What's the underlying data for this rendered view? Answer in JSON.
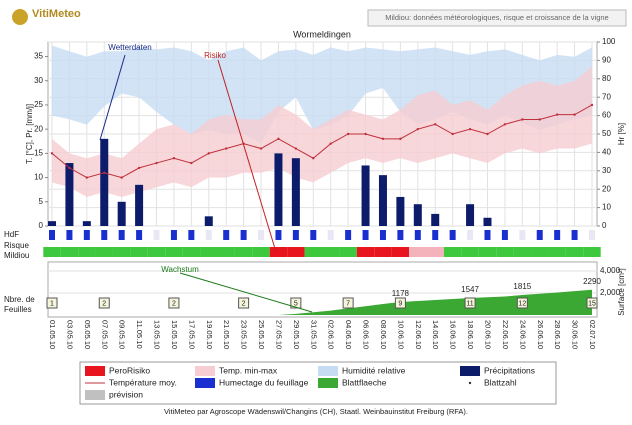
{
  "header": {
    "logo": "VitiMeteo",
    "subtitle": "Mildiou: données météorologiques, risque et croissance de la vigne"
  },
  "chart_data": {
    "type": "combo",
    "title": "Wormeldingen",
    "categories": [
      "01.05.10",
      "03.05.10",
      "05.05.10",
      "07.05.10",
      "09.05.10",
      "11.05.10",
      "13.05.10",
      "15.05.10",
      "17.05.10",
      "19.05.10",
      "21.05.10",
      "23.05.10",
      "25.05.10",
      "27.05.10",
      "29.05.10",
      "31.05.10",
      "02.06.10",
      "04.06.10",
      "06.06.10",
      "08.06.10",
      "10.06.10",
      "12.06.10",
      "14.06.10",
      "16.06.10",
      "18.06.10",
      "20.06.10",
      "22.06.10",
      "24.06.10",
      "26.06.10",
      "28.06.10",
      "30.06.10",
      "02.07.10"
    ],
    "ylabel": "T. [°C], Pr. [mm/j]",
    "ylim": [
      0,
      38
    ],
    "yticks": [
      0,
      5,
      10,
      15,
      20,
      25,
      30,
      35
    ],
    "y2label": "Hr [%]",
    "y2lim": [
      0,
      100
    ],
    "y2ticks": [
      0,
      10,
      20,
      30,
      40,
      50,
      60,
      70,
      80,
      90,
      100
    ],
    "grid": true,
    "series": [
      {
        "name": "Humidité relative",
        "kind": "band",
        "axis": "y2",
        "color": "#c5dcf3",
        "values": [
          98,
          95,
          92,
          95,
          95,
          97,
          96,
          97,
          95,
          90,
          95,
          97,
          90,
          95,
          96,
          93,
          97,
          95,
          97,
          96,
          95,
          96,
          97,
          95,
          93,
          95,
          96,
          93,
          90,
          93,
          92,
          97
        ],
        "low": [
          60,
          58,
          55,
          65,
          72,
          70,
          62,
          55,
          50,
          52,
          50,
          50,
          45,
          62,
          70,
          52,
          55,
          60,
          72,
          75,
          62,
          55,
          58,
          62,
          58,
          55,
          60,
          56,
          52,
          55,
          58,
          60
        ]
      },
      {
        "name": "Temp. min-max",
        "kind": "band",
        "color": "#f6cdd2",
        "values": [
          18,
          15,
          14,
          15,
          14,
          17,
          20,
          21,
          19,
          22,
          23,
          22,
          22,
          25,
          23,
          20,
          22,
          24,
          23,
          22,
          24,
          27,
          28,
          25,
          26,
          24,
          27,
          29,
          30,
          29,
          30,
          33
        ],
        "low": [
          9,
          8,
          6,
          7,
          6,
          7,
          8,
          9,
          8,
          10,
          10,
          11,
          11,
          12,
          10,
          9,
          11,
          13,
          14,
          13,
          14,
          13,
          14,
          15,
          14,
          13,
          15,
          16,
          15,
          16,
          16,
          17
        ]
      },
      {
        "name": "Précipitations",
        "kind": "bar",
        "color": "#0d1b6b",
        "values": [
          1,
          13,
          1,
          18,
          5,
          8.5,
          0,
          0,
          0,
          2,
          0,
          0,
          0,
          15,
          14,
          0,
          0,
          0,
          12.5,
          10.5,
          6,
          4.5,
          2.5,
          0,
          4.5,
          1.7,
          0,
          0,
          0,
          0,
          0,
          0
        ]
      },
      {
        "name": "Température moy.",
        "kind": "line",
        "color": "#c0303c",
        "values": [
          15,
          12,
          10,
          11,
          10,
          12,
          13,
          14,
          13,
          15,
          16,
          17,
          16,
          18,
          16,
          14,
          17,
          19,
          19,
          18,
          18,
          20,
          21,
          19,
          20,
          19,
          21,
          22,
          22,
          23,
          23,
          25
        ]
      }
    ],
    "wetness": {
      "name": "Humectage du feuillage",
      "label": "HdF",
      "color": "#1a2fd0",
      "values": [
        1,
        1,
        1,
        1,
        1,
        1,
        0,
        1,
        1,
        0,
        1,
        1,
        0,
        1,
        1,
        1,
        0,
        1,
        1,
        1,
        1,
        1,
        1,
        1,
        0,
        1,
        1,
        0,
        1,
        1,
        1,
        0
      ]
    },
    "risk": {
      "name": "PeroRisiko",
      "label": [
        "Risque",
        "Mildiou"
      ],
      "colors": [
        "#3ec83e",
        "#f4b3bb",
        "#e8141e"
      ],
      "values": [
        0,
        0,
        0,
        0,
        0,
        0,
        0,
        0,
        0,
        0,
        0,
        0,
        0,
        2,
        2,
        0,
        0,
        0,
        2,
        2,
        2,
        1,
        1,
        0,
        0,
        0,
        0,
        0,
        0,
        0,
        0,
        0
      ]
    },
    "forecast": {
      "name": "prévision",
      "color": "#c0c0c0"
    },
    "annotations": [
      {
        "text": "Wetterdaten",
        "color": "#1a2a8a"
      },
      {
        "text": "Risiko",
        "color": "#c02020"
      },
      {
        "text": "Wachstum",
        "color": "#1a7a1a"
      }
    ],
    "growth": {
      "label": [
        "Nbre. de",
        "Feuilles"
      ],
      "y2label": "Surface [cm²]",
      "y2lim": [
        0,
        4000
      ],
      "y2ticks": [
        {
          "value": 2000,
          "label": "2,000"
        },
        {
          "value": 4000,
          "label": "4,000"
        }
      ],
      "area": {
        "name": "Blattflaeche",
        "color": "#3aa832",
        "values": [
          0,
          0,
          0,
          0,
          0,
          0,
          0,
          0,
          0,
          0,
          0,
          0,
          0,
          0,
          100,
          250,
          400,
          600,
          800,
          1000,
          1178,
          1270,
          1360,
          1450,
          1547,
          1610,
          1680,
          1815,
          1930,
          2050,
          2170,
          2290
        ],
        "value_labels": [
          null,
          null,
          null,
          null,
          null,
          null,
          null,
          null,
          null,
          null,
          null,
          null,
          null,
          null,
          null,
          null,
          null,
          null,
          null,
          null,
          "1178",
          null,
          null,
          null,
          "1547",
          null,
          null,
          "1815",
          null,
          null,
          null,
          "2290"
        ]
      },
      "count": {
        "name": "Blattzahl",
        "color": "#f5f5dc",
        "values": [
          1,
          null,
          null,
          2,
          null,
          null,
          null,
          2,
          null,
          null,
          null,
          2,
          null,
          null,
          5,
          null,
          null,
          7,
          null,
          null,
          9,
          null,
          null,
          null,
          11,
          null,
          null,
          12,
          null,
          null,
          null,
          15
        ]
      }
    }
  },
  "footer": "VitiMeteo par Agroscope Wädenswil/Changins (CH), Staatl. Weinbauinstitut Freiburg (RFA)."
}
